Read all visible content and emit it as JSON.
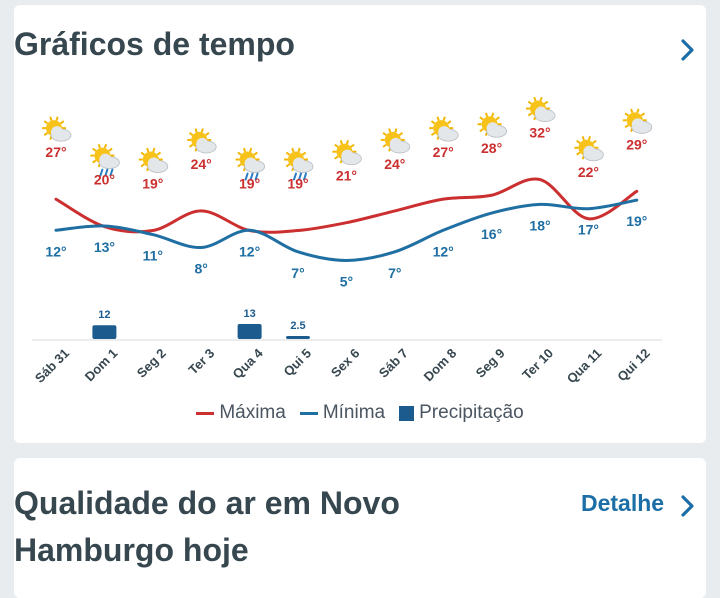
{
  "charts_card": {
    "title": "Gráficos de tempo"
  },
  "air_card": {
    "title": "Qualidade do ar em Novo Hamburgo hoje",
    "detail_label": "Detalhe"
  },
  "colors": {
    "max": "#cc2f2f",
    "min": "#1f6fa3",
    "precip": "#1c5b8e",
    "text": "#37474f"
  },
  "chart_data": {
    "type": "line",
    "x": [
      "Sáb 31",
      "Dom 1",
      "Seg 2",
      "Ter 3",
      "Qua 4",
      "Qui 5",
      "Sex 6",
      "Sáb 7",
      "Dom 8",
      "Seg 9",
      "Ter 10",
      "Qua 11",
      "Qui 12"
    ],
    "icons": [
      "sun-cloud",
      "sun-cloud-rain",
      "sun-cloud",
      "sun-cloud",
      "sun-cloud-rain",
      "sun-cloud-rain",
      "sun-cloud",
      "sun-cloud",
      "sun-cloud",
      "sun-cloud",
      "sun-cloud",
      "sun-cloud",
      "sun-cloud"
    ],
    "series": [
      {
        "name": "Máxima",
        "values": [
          27,
          20,
          19,
          24,
          19,
          19,
          21,
          24,
          27,
          28,
          32,
          22,
          29
        ],
        "labels": [
          "27°",
          "20°",
          "19°",
          "24°",
          "19°",
          "19°",
          "21°",
          "24°",
          "27°",
          "28°",
          "32°",
          "22°",
          "29°"
        ]
      },
      {
        "name": "Mínima",
        "values": [
          12,
          13,
          11,
          8,
          12,
          7,
          5,
          7,
          12,
          16,
          18,
          17,
          19
        ],
        "labels": [
          "12°",
          "13°",
          "11°",
          "8°",
          "12°",
          "7°",
          "5°",
          "7°",
          "12°",
          "16°",
          "18°",
          "17°",
          "19°"
        ]
      },
      {
        "name": "Precipitação",
        "values": [
          0,
          12,
          0,
          0,
          13,
          2.5,
          0,
          0,
          0,
          0,
          0,
          0,
          0
        ],
        "labels": [
          "",
          "12",
          "",
          "",
          "13",
          "2.5",
          "",
          "",
          "",
          "",
          "",
          "",
          ""
        ]
      }
    ],
    "legend_position": "bottom"
  }
}
